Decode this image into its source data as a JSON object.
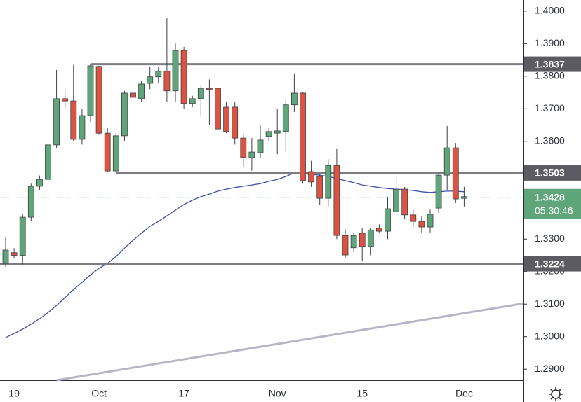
{
  "chart_data": {
    "type": "candlestick",
    "categories": [
      null,
      "19",
      null,
      null,
      null,
      null,
      null,
      null,
      null,
      null,
      null,
      "Oct",
      null,
      null,
      null,
      null,
      null,
      null,
      null,
      null,
      null,
      "17",
      null,
      null,
      null,
      null,
      null,
      null,
      null,
      null,
      null,
      null,
      "Nov",
      null,
      null,
      null,
      null,
      null,
      null,
      null,
      null,
      null,
      "15",
      null,
      null,
      null,
      null,
      null,
      null,
      null,
      null,
      null,
      null,
      null,
      "Dec"
    ],
    "open": [
      1.3225,
      1.3258,
      1.325,
      1.3367,
      1.3462,
      1.3483,
      1.3589,
      1.3731,
      1.3724,
      1.3606,
      1.3679,
      1.383,
      1.3625,
      1.3509,
      1.3617,
      1.3748,
      1.3731,
      1.3778,
      1.3798,
      1.3815,
      1.3755,
      1.3879,
      1.3716,
      1.3731,
      1.3763,
      1.3763,
      1.3705,
      1.3705,
      1.361,
      1.355,
      1.3565,
      1.3615,
      1.3625,
      1.363,
      1.3712,
      1.3748,
      1.3507,
      1.3492,
      1.3425,
      1.3526,
      1.3311,
      1.3273,
      1.3318,
      1.3277,
      1.3333,
      1.3324,
      1.3384,
      1.3453,
      1.3374,
      1.3354,
      1.3337,
      1.3395,
      1.3496,
      1.358,
      1.3425
    ],
    "high": [
      1.3305,
      1.3272,
      1.3378,
      1.347,
      1.3495,
      1.36,
      1.3819,
      1.376,
      1.3835,
      1.37,
      1.3837,
      1.3832,
      1.364,
      1.3625,
      1.3755,
      1.376,
      1.3785,
      1.383,
      1.383,
      1.3978,
      1.39,
      1.389,
      1.374,
      1.377,
      1.379,
      1.3859,
      1.372,
      1.372,
      1.362,
      1.361,
      1.365,
      1.364,
      1.37,
      1.373,
      1.3808,
      1.375,
      1.354,
      1.35,
      1.3545,
      1.3576,
      1.333,
      1.332,
      1.3335,
      1.3335,
      1.3345,
      1.343,
      1.349,
      1.346,
      1.339,
      1.337,
      1.339,
      1.35,
      1.3647,
      1.3595,
      1.346
    ],
    "low": [
      1.3215,
      1.324,
      1.3222,
      1.3355,
      1.345,
      1.347,
      1.358,
      1.37,
      1.36,
      1.359,
      1.366,
      1.362,
      1.3505,
      1.3503,
      1.36,
      1.3725,
      1.372,
      1.376,
      1.378,
      1.372,
      1.372,
      1.37,
      1.3705,
      1.368,
      1.365,
      1.363,
      1.3625,
      1.359,
      1.352,
      1.351,
      1.355,
      1.36,
      1.356,
      1.357,
      1.369,
      1.347,
      1.346,
      1.3405,
      1.34,
      1.33,
      1.3242,
      1.326,
      1.3233,
      1.325,
      1.332,
      1.33,
      1.337,
      1.336,
      1.334,
      1.332,
      1.332,
      1.338,
      1.345,
      1.341,
      1.34
    ],
    "close": [
      1.3266,
      1.325,
      1.3367,
      1.3462,
      1.3483,
      1.3589,
      1.3731,
      1.3724,
      1.3606,
      1.3679,
      1.3832,
      1.3625,
      1.3509,
      1.3617,
      1.3748,
      1.3735,
      1.3776,
      1.3798,
      1.3815,
      1.3755,
      1.3879,
      1.3716,
      1.3731,
      1.3763,
      1.376,
      1.3638,
      1.363,
      1.361,
      1.355,
      1.3567,
      1.3604,
      1.363,
      1.3632,
      1.3712,
      1.3748,
      1.3479,
      1.3475,
      1.3425,
      1.3526,
      1.3311,
      1.3251,
      1.3311,
      1.3277,
      1.3328,
      1.3324,
      1.3393,
      1.3453,
      1.3374,
      1.3354,
      1.3337,
      1.3376,
      1.3496,
      1.358,
      1.3423,
      1.343
    ],
    "up_color": "#5fa57a",
    "down_color": "#dc5441",
    "moving_average": {
      "color": "#3f51a8",
      "values": [
        1.2997,
        1.301,
        1.3023,
        1.3038,
        1.3055,
        1.3074,
        1.3096,
        1.312,
        1.3145,
        1.3167,
        1.319,
        1.321,
        1.3225,
        1.3246,
        1.3272,
        1.3296,
        1.3318,
        1.3339,
        1.3354,
        1.3371,
        1.3389,
        1.3406,
        1.3419,
        1.343,
        1.3438,
        1.3447,
        1.3453,
        1.3458,
        1.3462,
        1.3466,
        1.347,
        1.3477,
        1.3483,
        1.3492,
        1.3503,
        1.3501,
        1.3498,
        1.3496,
        1.3492,
        1.3486,
        1.3479,
        1.3473,
        1.3466,
        1.3462,
        1.3458,
        1.3455,
        1.3453,
        1.3451,
        1.3449,
        1.3445,
        1.3443,
        1.3445,
        1.3447,
        1.3447,
        1.3445
      ]
    },
    "levels": [
      {
        "value": 1.3837,
        "start": 10
      },
      {
        "value": 1.3503,
        "start": 13
      },
      {
        "value": 1.3224,
        "start": -1
      }
    ],
    "level_color": "#7c7c82",
    "trendline": {
      "x": [
        6,
        61
      ],
      "values": [
        1.2866,
        1.3102
      ],
      "color": "#b8b6c4"
    },
    "last_price": 1.3428,
    "countdown": "05:30:46",
    "ylim": [
      1.2866,
      1.4034
    ],
    "yticks": [
      {
        "value": 1.4,
        "label": "1.4000"
      },
      {
        "value": 1.39,
        "label": "1.3900"
      },
      {
        "value": 1.38,
        "label": "1.3800"
      },
      {
        "value": 1.37,
        "label": "1.3700"
      },
      {
        "value": 1.36,
        "label": "1.3600"
      },
      {
        "value": 1.33,
        "label": "1.3300"
      },
      {
        "value": 1.32,
        "label": "1.3200"
      },
      {
        "value": 1.31,
        "label": "1.3100"
      },
      {
        "value": 1.3,
        "label": "1.3000"
      },
      {
        "value": 1.29,
        "label": "1.2900"
      }
    ]
  }
}
